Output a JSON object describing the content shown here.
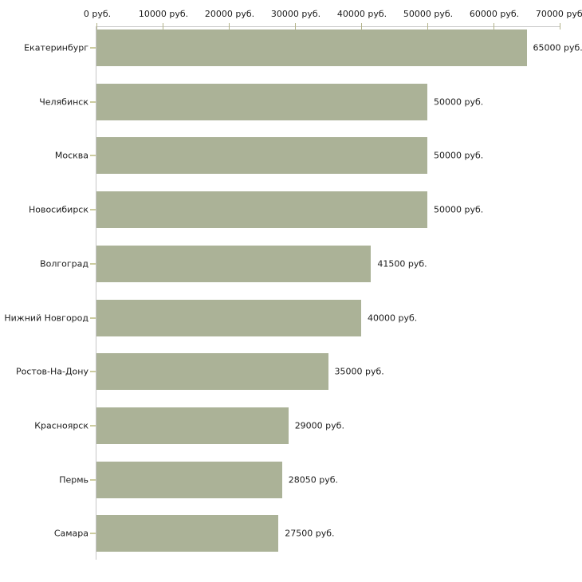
{
  "chart_data": {
    "type": "bar",
    "orientation": "horizontal",
    "title": "",
    "xlabel": "",
    "ylabel": "",
    "unit": "руб.",
    "xlim": [
      0,
      70000
    ],
    "grid": false,
    "legend": null,
    "x_ticks": [
      0,
      10000,
      20000,
      30000,
      40000,
      50000,
      60000,
      70000
    ],
    "x_tick_labels": [
      "0 руб.",
      "10000 руб.",
      "20000 руб.",
      "30000 руб.",
      "40000 руб.",
      "50000 руб.",
      "60000 руб.",
      "70000 руб."
    ],
    "categories": [
      "Екатеринбург",
      "Челябинск",
      "Москва",
      "Новосибирск",
      "Волгоград",
      "Нижний Новгород",
      "Ростов-На-Дону",
      "Красноярск",
      "Пермь",
      "Самара"
    ],
    "values": [
      65000,
      50000,
      50000,
      50000,
      41500,
      40000,
      35000,
      29000,
      28050,
      27500
    ],
    "value_labels": [
      "65000 руб.",
      "50000 руб.",
      "50000 руб.",
      "50000 руб.",
      "41500 руб.",
      "40000 руб.",
      "35000 руб.",
      "29000 руб.",
      "28050 руб.",
      "27500 руб."
    ]
  },
  "colors": {
    "bar": "#abb297",
    "axis_line": "#c6c6c6",
    "axis_tick": "#b3b389",
    "category_tick": "#cccc9f",
    "text": "#1c1c1c",
    "background": "#ffffff"
  }
}
